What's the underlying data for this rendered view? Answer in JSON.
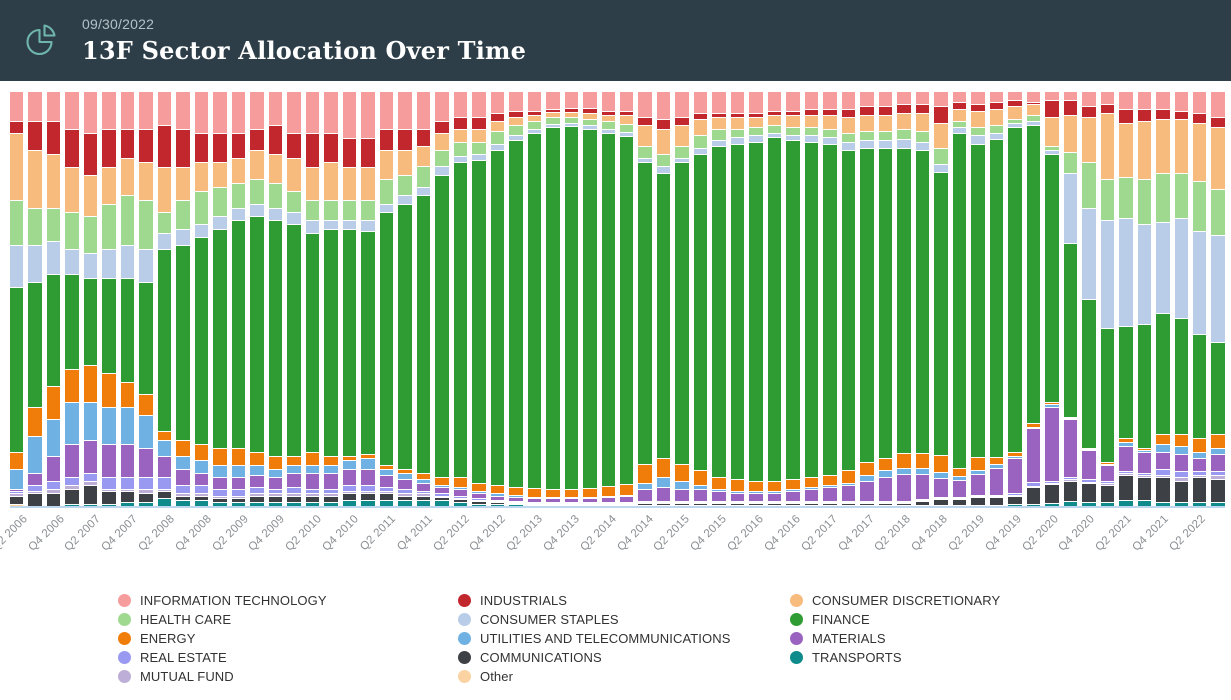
{
  "header": {
    "date": "09/30/2022",
    "title": "13F Sector Allocation Over Time",
    "icon": "pie-chart-icon",
    "background": "#2d3e49",
    "icon_color": "#6fb5ab"
  },
  "chart_data": {
    "type": "bar",
    "stacked": true,
    "normalized_percent": true,
    "title": "13F Sector Allocation Over Time",
    "xlabel": "",
    "ylabel": "",
    "ylim": [
      0,
      100
    ],
    "grid": false,
    "y_axis_shown": false,
    "axis_line_color": "#bdd7ef",
    "tick_label_color": "#8a8f93",
    "x": [
      "Q2 2006",
      "Q3 2006",
      "Q4 2006",
      "Q1 2007",
      "Q2 2007",
      "Q3 2007",
      "Q4 2007",
      "Q1 2008",
      "Q2 2008",
      "Q3 2008",
      "Q4 2008",
      "Q1 2009",
      "Q2 2009",
      "Q3 2009",
      "Q4 2009",
      "Q1 2010",
      "Q2 2010",
      "Q3 2010",
      "Q4 2010",
      "Q1 2011",
      "Q2 2011",
      "Q3 2011",
      "Q4 2011",
      "Q1 2012",
      "Q2 2012",
      "Q3 2012",
      "Q4 2012",
      "Q1 2013",
      "Q2 2013",
      "Q3 2013",
      "Q4 2013",
      "Q1 2014",
      "Q2 2014",
      "Q3 2014",
      "Q4 2014",
      "Q1 2015",
      "Q2 2015",
      "Q3 2015",
      "Q4 2015",
      "Q1 2016",
      "Q2 2016",
      "Q3 2016",
      "Q4 2016",
      "Q1 2017",
      "Q2 2017",
      "Q3 2017",
      "Q4 2017",
      "Q1 2018",
      "Q2 2018",
      "Q3 2018",
      "Q4 2018",
      "Q1 2019",
      "Q2 2019",
      "Q3 2019",
      "Q4 2019",
      "Q1 2020",
      "Q2 2020",
      "Q3 2020",
      "Q4 2020",
      "Q1 2021",
      "Q2 2021",
      "Q3 2021",
      "Q4 2021",
      "Q1 2022",
      "Q2 2022",
      "Q3 2022"
    ],
    "tick_every": 2,
    "tick_labels": [
      "Q2 2006",
      "Q4 2006",
      "Q2 2007",
      "Q4 2007",
      "Q2 2008",
      "Q4 2008",
      "Q2 2009",
      "Q4 2009",
      "Q2 2010",
      "Q4 2010",
      "Q2 2011",
      "Q4 2011",
      "Q2 2012",
      "Q4 2012",
      "Q2 2013",
      "Q4 2013",
      "Q2 2014",
      "Q4 2014",
      "Q2 2015",
      "Q4 2015",
      "Q2 2016",
      "Q4 2016",
      "Q2 2017",
      "Q4 2017",
      "Q2 2018",
      "Q4 2018",
      "Q2 2019",
      "Q4 2019",
      "Q2 2020",
      "Q4 2020",
      "Q2 2021",
      "Q4 2021",
      "Q2 2022"
    ],
    "series": [
      {
        "name": "INFORMATION TECHNOLOGY",
        "color": "#f79c9c",
        "values": [
          7,
          7,
          7,
          9,
          10,
          9,
          9,
          9,
          8,
          9,
          10,
          10,
          10,
          9,
          8,
          10,
          10,
          10,
          11,
          11,
          9,
          9,
          9,
          7,
          6,
          6,
          5,
          4.5,
          4.5,
          4,
          4,
          4,
          4.5,
          4.5,
          6,
          6.5,
          6,
          5,
          5,
          5,
          5,
          4.5,
          4.5,
          4,
          4,
          4,
          3.5,
          3.5,
          3,
          3,
          3.5,
          2.5,
          3,
          2.5,
          2,
          2.5,
          2,
          2,
          3.5,
          3,
          4,
          4,
          4,
          4.5,
          5,
          6
        ]
      },
      {
        "name": "INDUSTRIALS",
        "color": "#c3272e",
        "values": [
          3,
          7,
          8,
          9,
          10,
          9,
          7,
          8,
          10,
          9,
          7,
          7,
          6,
          5,
          7,
          6,
          8,
          7,
          7,
          7,
          5,
          5,
          4,
          3,
          3,
          3,
          2,
          1.5,
          1,
          0.8,
          0.8,
          1,
          1,
          1.2,
          2,
          2.5,
          2,
          1.5,
          1,
          1,
          1,
          1,
          1,
          1.5,
          1.5,
          2,
          2,
          2,
          2,
          2,
          4,
          1.5,
          1.5,
          1.5,
          1.5,
          0.5,
          4,
          3.5,
          2.5,
          2,
          3.5,
          3,
          2.5,
          2,
          2.5,
          2.5
        ]
      },
      {
        "name": "CONSUMER DISCRETIONARY",
        "color": "#f7bc7d",
        "values": [
          16,
          14,
          13,
          11,
          10,
          9,
          9,
          9,
          11,
          8,
          7,
          6,
          6,
          7,
          7,
          8,
          8,
          9,
          8,
          8,
          7,
          6,
          5,
          4,
          3,
          3,
          2.5,
          2,
          1.5,
          1.2,
          1.2,
          1.5,
          1.5,
          2,
          5,
          6,
          5,
          4,
          3,
          3,
          2.5,
          2.5,
          3,
          3,
          3.5,
          4,
          4,
          4,
          4,
          4.5,
          6,
          3,
          4,
          4,
          3,
          2.5,
          7,
          9,
          11,
          16,
          13,
          14,
          13,
          13,
          14,
          15
        ]
      },
      {
        "name": "HEALTH CARE",
        "color": "#9fd98f",
        "values": [
          11,
          9,
          8,
          9,
          9,
          11,
          12,
          12,
          5,
          7,
          8,
          7,
          6,
          6,
          6,
          5,
          5,
          5,
          5,
          5,
          6,
          5,
          5,
          4,
          3.5,
          3,
          3,
          2.5,
          2,
          1.8,
          1.5,
          1.5,
          2,
          2,
          3,
          3,
          3,
          3,
          2.5,
          2,
          2,
          2,
          2,
          2,
          2,
          2,
          2,
          2,
          2.5,
          2.5,
          4,
          1.5,
          2,
          2,
          1,
          1.5,
          1,
          5,
          11,
          10,
          10,
          11,
          12,
          11,
          12,
          11
        ]
      },
      {
        "name": "CONSUMER STAPLES",
        "color": "#b9cde8",
        "values": [
          10,
          9,
          8,
          6,
          6,
          7,
          8,
          8,
          4,
          4,
          3,
          3,
          3,
          3,
          3,
          3,
          3,
          2,
          2,
          2.5,
          2,
          2,
          2,
          2,
          1.5,
          1.5,
          1.5,
          1,
          1,
          0.8,
          0.8,
          1,
          1,
          1,
          1,
          1.5,
          1,
          1.5,
          1.5,
          1.5,
          1.5,
          1,
          1,
          1.5,
          1.5,
          2,
          2,
          2,
          2,
          2,
          2,
          1.5,
          2,
          1.5,
          1,
          1,
          1,
          17,
          22,
          26,
          26,
          24,
          22,
          24,
          25,
          26
        ]
      },
      {
        "name": "FINANCE",
        "color": "#2e9b33",
        "values": [
          40,
          30,
          27,
          23,
          21,
          23,
          25,
          27,
          44,
          47,
          50,
          53,
          55,
          57,
          57,
          56,
          53,
          55,
          55,
          54,
          61,
          64,
          67,
          73,
          76,
          78,
          81,
          84,
          86,
          87.5,
          88,
          87,
          85.5,
          84.5,
          73,
          69,
          73,
          76.5,
          80,
          81,
          82,
          83,
          82,
          81,
          80,
          77.5,
          76,
          75,
          74,
          73.5,
          68.5,
          81,
          76,
          77,
          78.5,
          72,
          60,
          42,
          36,
          32.5,
          27,
          30,
          29,
          28,
          25,
          22
        ]
      },
      {
        "name": "ENERGY",
        "color": "#f07d0a",
        "values": [
          4,
          7,
          8,
          8,
          9,
          8,
          6,
          5,
          2,
          4,
          4,
          4,
          4,
          3,
          3,
          2,
          3,
          2,
          1,
          1,
          1,
          1,
          1.5,
          2,
          2.5,
          2,
          2,
          2,
          2,
          2,
          2,
          2.2,
          2.5,
          2.5,
          4.5,
          4.5,
          4,
          3.5,
          3,
          3,
          2.5,
          2.5,
          2.5,
          2.5,
          2.5,
          3,
          3,
          3,
          3.5,
          3.5,
          4,
          2,
          3,
          1.5,
          1,
          1,
          0.5,
          0.3,
          0.3,
          0.3,
          1,
          0.5,
          2.5,
          3,
          3.5,
          3.5
        ]
      },
      {
        "name": "UTILITIES AND TELECOMMUNICATIONS",
        "color": "#6fb1e3",
        "values": [
          5,
          9,
          9,
          10,
          9,
          9,
          9,
          8,
          4,
          3,
          3,
          3,
          3,
          2.5,
          2,
          2,
          2,
          2,
          2,
          2.5,
          1.5,
          1.5,
          1,
          0.5,
          0.5,
          0.5,
          0.5,
          0.3,
          0.2,
          0.2,
          0.2,
          0.2,
          0.3,
          0.3,
          1.5,
          2.5,
          2,
          1,
          0.5,
          0.5,
          0.5,
          0.5,
          0.5,
          0.5,
          0.5,
          0.5,
          1.5,
          1.5,
          1.5,
          1.5,
          1.5,
          1,
          1,
          1,
          0.5,
          0.3,
          0.5,
          0.3,
          0.3,
          0.3,
          1,
          0.5,
          2,
          2,
          1.5,
          1.5
        ]
      },
      {
        "name": "MATERIALS",
        "color": "#9a63c0",
        "values": [
          0.5,
          3,
          6,
          8,
          8,
          8,
          8,
          7,
          5,
          4,
          3,
          3,
          3,
          3,
          3,
          3.5,
          4,
          4,
          4,
          4,
          3,
          2.5,
          2,
          1.5,
          1.5,
          1.2,
          1,
          1,
          1,
          1,
          1,
          1,
          1.2,
          1.5,
          3,
          3.5,
          3,
          3,
          2.5,
          2,
          2,
          2,
          2.5,
          3,
          3.5,
          4,
          5,
          6,
          6.5,
          6,
          4.5,
          4,
          5,
          6.5,
          8.5,
          13,
          18,
          14,
          7,
          4,
          6,
          5,
          4,
          4,
          3,
          4
        ]
      },
      {
        "name": "REAL ESTATE",
        "color": "#9a99f2",
        "values": [
          0.5,
          1.5,
          2,
          2,
          2,
          3,
          3,
          3,
          3,
          2,
          2,
          1.5,
          1.5,
          1.5,
          1,
          1.5,
          1,
          1,
          1.5,
          1.5,
          1,
          1,
          0.5,
          0.5,
          0.5,
          0.3,
          0.3,
          0.2,
          0.2,
          0.2,
          0.1,
          0.1,
          0.1,
          0.1,
          0.2,
          0.2,
          0.2,
          0.2,
          0.2,
          0.2,
          0.2,
          0.2,
          0.2,
          0.2,
          0.2,
          0.2,
          0.2,
          0.2,
          0.1,
          0.1,
          0.1,
          0.1,
          0.1,
          0.1,
          0.3,
          1,
          0.5,
          0.5,
          0.5,
          0.4,
          0.5,
          0.5,
          1.5,
          1.5,
          1,
          1
        ]
      },
      {
        "name": "MUTUAL FUND",
        "color": "#bcaed6",
        "values": [
          0.5,
          0.5,
          1,
          1,
          1,
          0.5,
          0.5,
          1,
          0.5,
          0.5,
          0.5,
          0.5,
          0.5,
          0.5,
          0.5,
          0.5,
          0.5,
          0.5,
          0.5,
          0.5,
          0.5,
          0.5,
          0.5,
          0.3,
          0.3,
          0.2,
          0.2,
          0.2,
          0.1,
          0.1,
          0.1,
          0.1,
          0.1,
          0.1,
          0.2,
          0.2,
          0.2,
          0.2,
          0.2,
          0.2,
          0.2,
          0.2,
          0.2,
          0.2,
          0.2,
          0.2,
          0.2,
          0.2,
          0.1,
          0.1,
          0.1,
          0.1,
          0.1,
          0.1,
          0.2,
          0.2,
          0.3,
          0.3,
          0.4,
          0.5,
          0.5,
          0.5,
          0.5,
          1,
          0.5,
          1
        ]
      },
      {
        "name": "COMMUNICATIONS",
        "color": "#3d4045",
        "values": [
          2,
          3,
          3,
          3.5,
          4.5,
          3,
          2.5,
          2,
          1.5,
          1,
          1,
          1,
          1,
          1.5,
          1.5,
          1.5,
          1.5,
          1.5,
          1.5,
          1.5,
          1.5,
          1,
          1,
          0.7,
          0.7,
          0.8,
          0.5,
          0.3,
          0.2,
          0.2,
          0.1,
          0.2,
          0.1,
          0.1,
          0.4,
          0.4,
          0.4,
          0.4,
          0.4,
          0.4,
          0.4,
          0.4,
          0.4,
          0.4,
          0.4,
          0.4,
          0.4,
          0.4,
          0.6,
          1,
          1.5,
          1.5,
          2,
          2,
          2,
          4,
          4.5,
          5,
          4.5,
          4,
          6,
          5.5,
          6,
          5,
          6,
          5.5
        ]
      },
      {
        "name": "TRANSPORTS",
        "color": "#0f8b8b",
        "values": [
          0,
          0,
          0,
          0.5,
          0.5,
          0.5,
          1,
          1,
          2,
          1.5,
          1.5,
          1,
          1,
          1,
          1,
          1,
          1,
          1,
          1.5,
          1.5,
          1.5,
          1.5,
          1.5,
          1.5,
          1,
          0.5,
          0.5,
          0.5,
          0.3,
          0.2,
          0.2,
          0.2,
          0.2,
          0.2,
          0.2,
          0.2,
          0.2,
          0.2,
          0.2,
          0.2,
          0.2,
          0.2,
          0.2,
          0.2,
          0.2,
          0.2,
          0.2,
          0.2,
          0.2,
          0.3,
          0.3,
          0.3,
          0.3,
          0.3,
          0.5,
          0.5,
          0.7,
          1.1,
          1,
          1,
          1.5,
          1.5,
          1,
          1,
          1,
          1
        ]
      },
      {
        "name": "Other",
        "color": "#fbd3a2",
        "values": [
          0.5,
          0,
          0,
          0,
          0,
          0,
          0,
          0,
          0,
          0,
          0,
          0,
          0,
          0,
          0,
          0,
          0,
          0,
          0,
          0,
          0,
          0,
          0,
          0,
          0,
          0,
          0,
          0,
          0,
          0,
          0,
          0,
          0,
          0,
          0,
          0,
          0,
          0,
          0,
          0,
          0,
          0,
          0,
          0,
          0,
          0,
          0,
          0,
          0,
          0,
          0,
          0,
          0,
          0,
          0,
          0,
          0,
          0,
          0,
          0,
          0,
          0,
          0,
          0,
          0,
          0
        ]
      }
    ],
    "legend": {
      "position": "bottom",
      "columns": [
        [
          "INFORMATION TECHNOLOGY",
          "HEALTH CARE",
          "ENERGY",
          "REAL ESTATE",
          "MUTUAL FUND"
        ],
        [
          "INDUSTRIALS",
          "CONSUMER STAPLES",
          "UTILITIES AND TELECOMMUNICATIONS",
          "COMMUNICATIONS",
          "Other"
        ],
        [
          "CONSUMER DISCRETIONARY",
          "FINANCE",
          "MATERIALS",
          "TRANSPORTS"
        ]
      ]
    }
  }
}
